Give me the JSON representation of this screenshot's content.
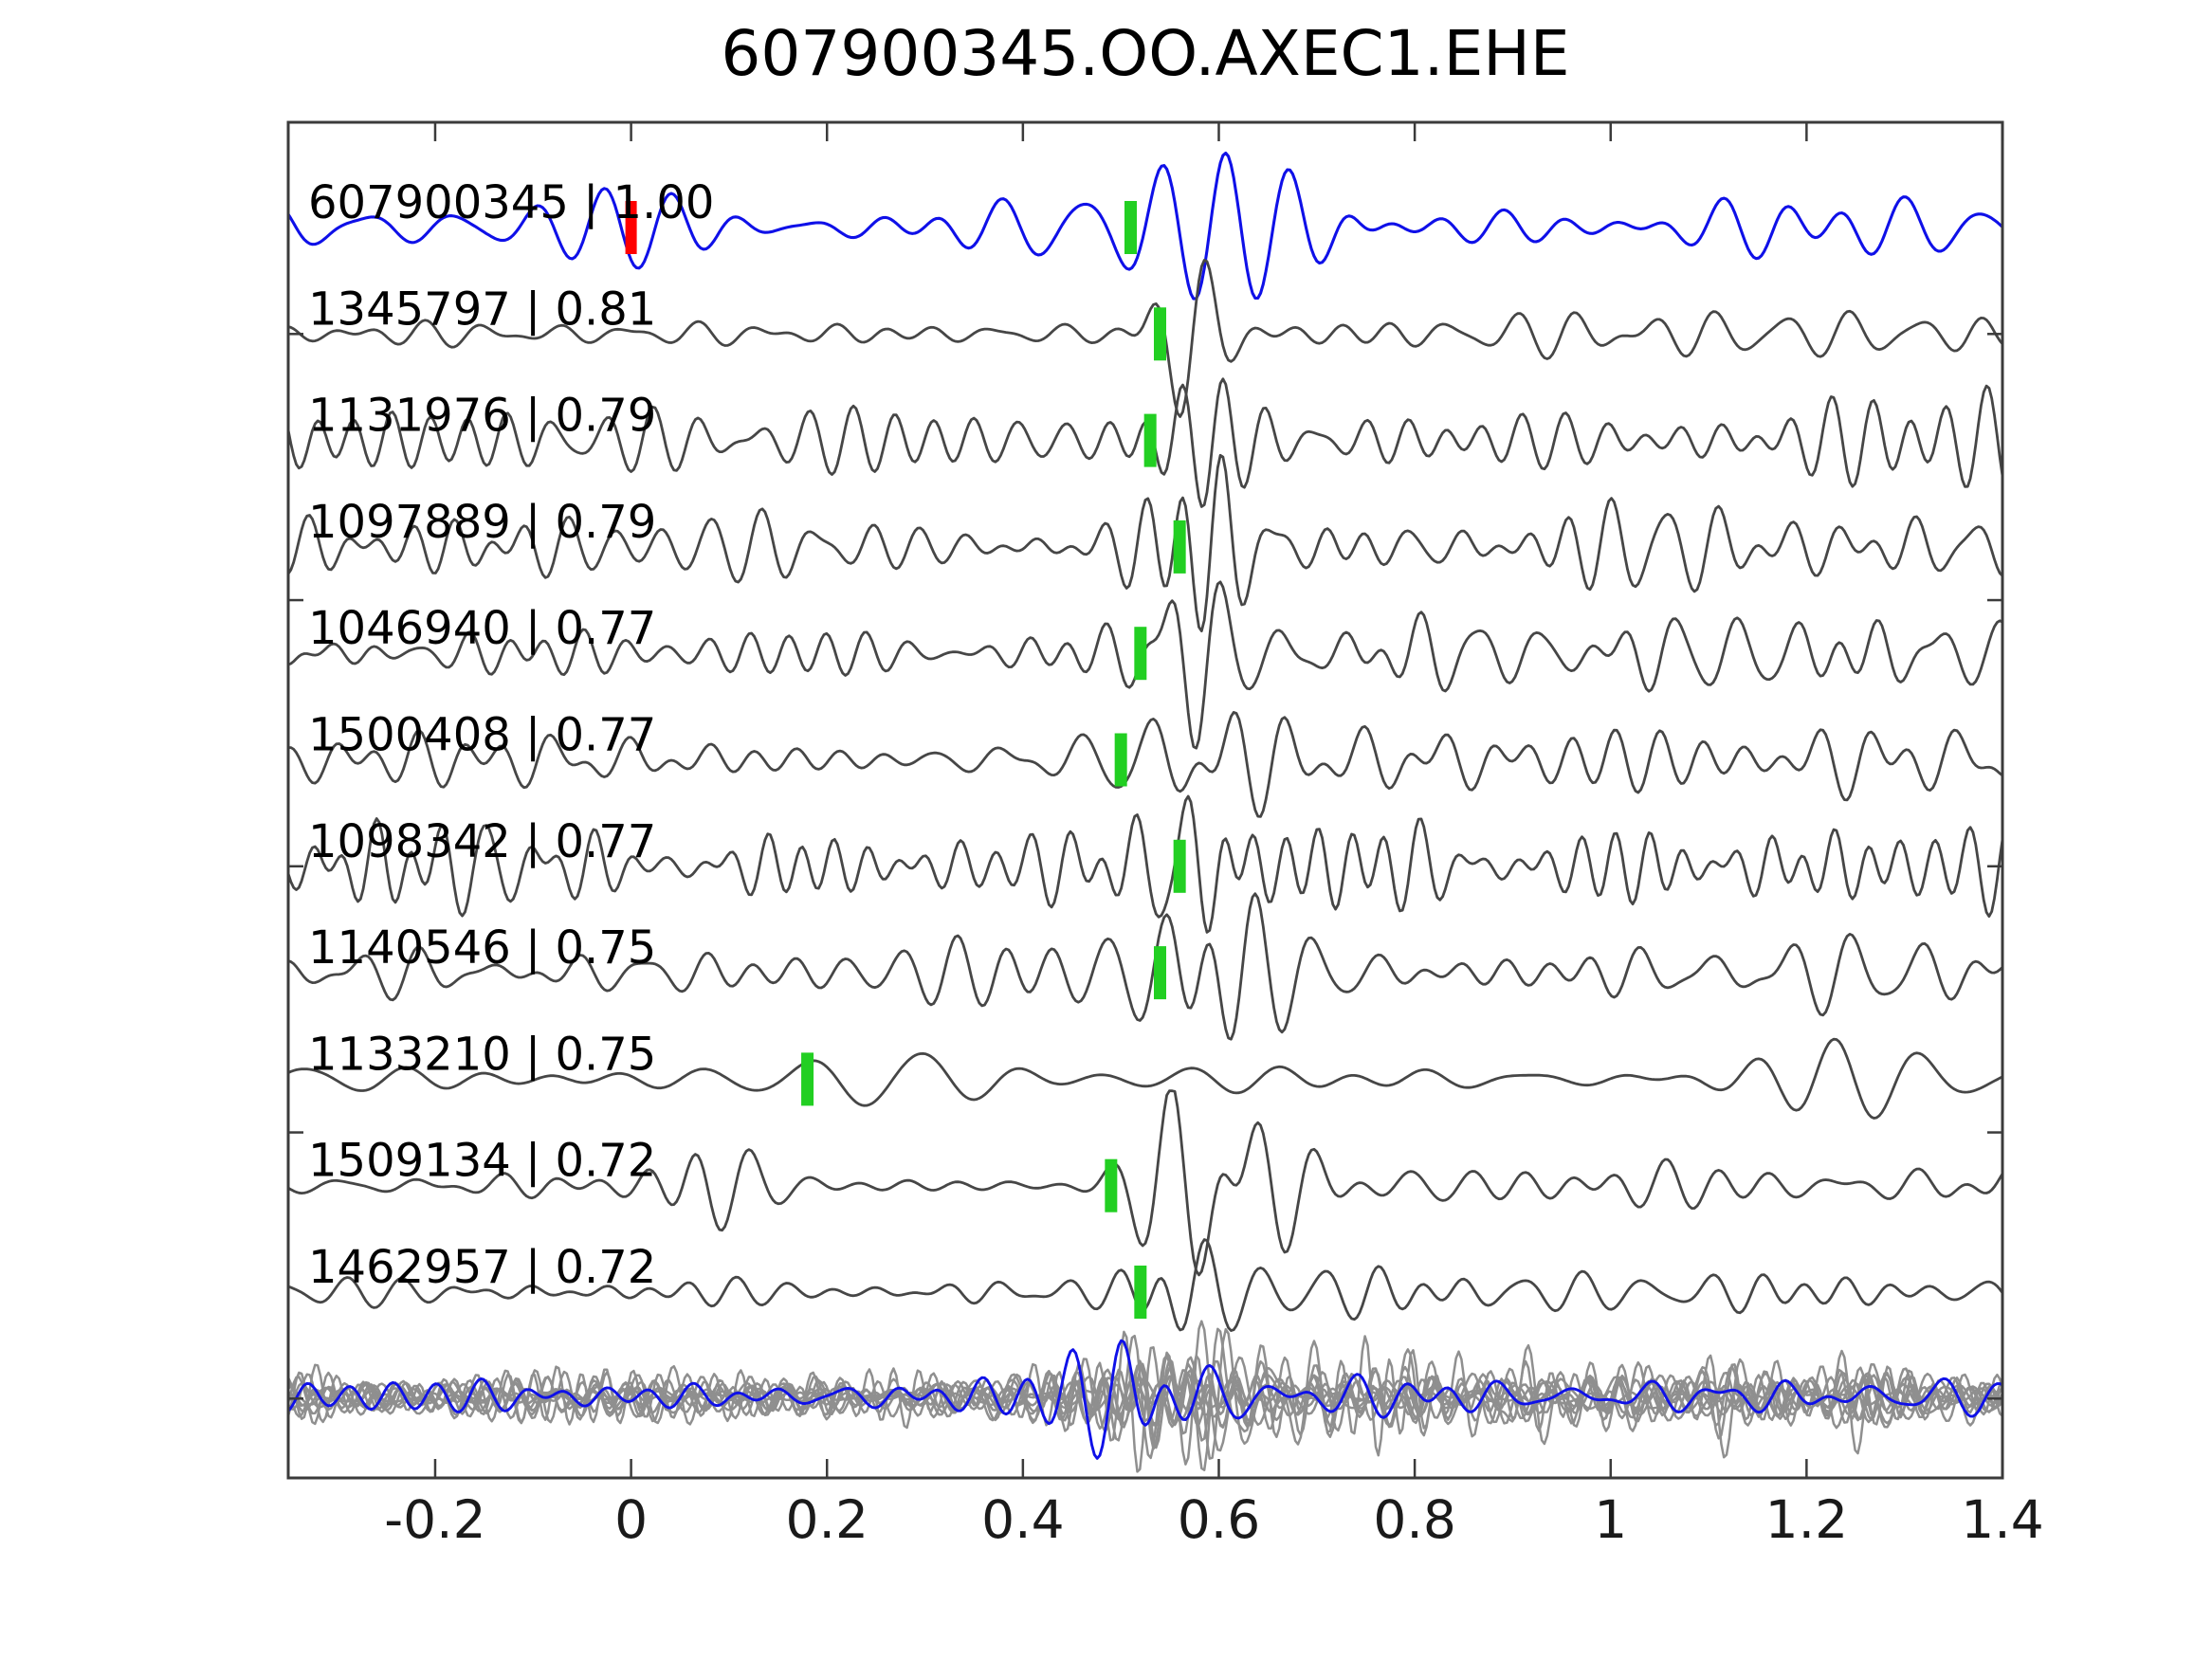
{
  "title": "607900345.OO.AXEC1.EHE",
  "colors": {
    "template_trace": "#0f10e8",
    "detection_trace": "#464646",
    "overlay_trace": "#8f8f8f",
    "pick_marker": "#22cf22",
    "template_pick_marker": "#ff0000",
    "frame": "#3b3b3b",
    "text": "#000000",
    "tick_text": "#1a1a1a"
  },
  "axis": {
    "x_min": -0.35,
    "x_max": 1.4,
    "x_ticks": [
      {
        "value": -0.2,
        "label": "-0.2"
      },
      {
        "value": 0,
        "label": "0"
      },
      {
        "value": 0.2,
        "label": "0.2"
      },
      {
        "value": 0.4,
        "label": "0.4"
      },
      {
        "value": 0.6,
        "label": "0.6"
      },
      {
        "value": 0.8,
        "label": "0.8"
      },
      {
        "value": 1,
        "label": "1"
      },
      {
        "value": 1.2,
        "label": "1.2"
      },
      {
        "value": 1.4,
        "label": "1.4"
      }
    ],
    "y_offset_ticks": [
      1,
      3.5,
      6,
      8.5,
      11
    ]
  },
  "chart_data": {
    "type": "line",
    "title": "607900345.OO.AXEC1.EHE",
    "x_range": [
      -0.35,
      1.4
    ],
    "legend": "none",
    "grid": false,
    "description_visible_only": "stacked waveform traces; label = event id | cross-correlation value; green bar = pick time; red bar = template zero time",
    "traces": [
      {
        "id": "607900345",
        "cc": 1.0,
        "label": "607900345 | 1.00",
        "pick_time": 0.51,
        "template_time": 0.0,
        "role": "template",
        "gen": {
          "seed": 11,
          "fmin": 9,
          "fmax": 19,
          "base": 17,
          "post": 18,
          "tc": 0.66,
          "bursts": [
            [
              0.6,
              0.09,
              30
            ],
            [
              0.73,
              0.07,
              24
            ]
          ]
        }
      },
      {
        "id": "1345797",
        "cc": 0.81,
        "label": "1345797 | 0.81",
        "pick_time": 0.54,
        "role": "detection",
        "gen": {
          "seed": 22,
          "fmin": 12,
          "fmax": 26,
          "base": 7,
          "post": 13,
          "tc": 0.62,
          "bursts": [
            [
              0.565,
              0.045,
              52
            ]
          ]
        }
      },
      {
        "id": "1131976",
        "cc": 0.79,
        "label": "1131976 | 0.79",
        "pick_time": 0.53,
        "role": "detection",
        "gen": {
          "seed": 33,
          "fmin": 14,
          "fmax": 30,
          "base": 21,
          "post": 24,
          "tc": 0.62,
          "bursts": [
            [
              0.56,
              0.06,
              34
            ]
          ]
        }
      },
      {
        "id": "1097889",
        "cc": 0.79,
        "label": "1097889 | 0.79",
        "pick_time": 0.56,
        "role": "detection",
        "gen": {
          "seed": 44,
          "fmin": 13,
          "fmax": 28,
          "base": 20,
          "post": 24,
          "tc": 0.63,
          "bursts": [
            [
              0.575,
              0.06,
              40
            ]
          ]
        }
      },
      {
        "id": "1046940",
        "cc": 0.77,
        "label": "1046940 | 0.77",
        "pick_time": 0.52,
        "role": "detection",
        "gen": {
          "seed": 55,
          "fmin": 14,
          "fmax": 30,
          "base": 19,
          "post": 22,
          "tc": 0.62,
          "bursts": [
            [
              0.565,
              0.05,
              38
            ]
          ]
        }
      },
      {
        "id": "1500408",
        "cc": 0.77,
        "label": "1500408 | 0.77",
        "pick_time": 0.5,
        "role": "detection",
        "gen": {
          "seed": 66,
          "fmin": 11,
          "fmax": 24,
          "base": 19,
          "post": 25,
          "tc": 0.64,
          "bursts": [
            [
              0.585,
              0.08,
              40
            ]
          ]
        }
      },
      {
        "id": "1098342",
        "cc": 0.77,
        "label": "1098342 | 0.77",
        "pick_time": 0.56,
        "role": "detection",
        "gen": {
          "seed": 77,
          "fmin": 16,
          "fmax": 34,
          "base": 26,
          "post": 27,
          "tc": 0.63,
          "bursts": [
            [
              0.575,
              0.06,
              34
            ]
          ]
        }
      },
      {
        "id": "1140546",
        "cc": 0.75,
        "label": "1140546 | 0.75",
        "pick_time": 0.54,
        "role": "detection",
        "gen": {
          "seed": 88,
          "fmin": 13,
          "fmax": 28,
          "base": 17,
          "post": 23,
          "tc": 0.64,
          "bursts": [
            [
              0.585,
              0.06,
              38
            ]
          ]
        }
      },
      {
        "id": "1133210",
        "cc": 0.75,
        "label": "1133210 | 0.75",
        "pick_time": 0.18,
        "role": "detection",
        "gen": {
          "seed": 99,
          "fmin": 8,
          "fmax": 16,
          "base": 10,
          "post": 10,
          "tc": 0.34,
          "bursts": [
            [
              0.28,
              0.1,
              28
            ],
            [
              1.22,
              0.1,
              16
            ]
          ]
        }
      },
      {
        "id": "1509134",
        "cc": 0.72,
        "label": "1509134 | 0.72",
        "pick_time": 0.49,
        "role": "detection",
        "gen": {
          "seed": 110,
          "fmin": 11,
          "fmax": 24,
          "base": 7,
          "post": 15,
          "tc": 0.66,
          "bursts": [
            [
              0.08,
              0.06,
              24
            ],
            [
              0.6,
              0.08,
              52
            ]
          ]
        }
      },
      {
        "id": "1462957",
        "cc": 0.72,
        "label": "1462957 | 0.72",
        "pick_time": 0.52,
        "role": "detection",
        "gen": {
          "seed": 121,
          "fmin": 12,
          "fmax": 26,
          "base": 9,
          "post": 14,
          "tc": 0.62,
          "bursts": [
            [
              0.56,
              0.05,
              44
            ]
          ]
        }
      }
    ],
    "overlay": {
      "n_gray": 10,
      "gray_gen": {
        "seed_base": 900,
        "fmin": 16,
        "fmax": 38,
        "base_min": 8,
        "base_spread": 7,
        "burst_amp_min": 14,
        "burst_amp_spread": 26
      },
      "template_gen": {
        "seed": 777,
        "fmin": 13,
        "fmax": 27,
        "base": 13,
        "post": 14,
        "tc": 0.62,
        "bursts": [
          [
            0.55,
            0.1,
            30
          ]
        ]
      }
    }
  }
}
